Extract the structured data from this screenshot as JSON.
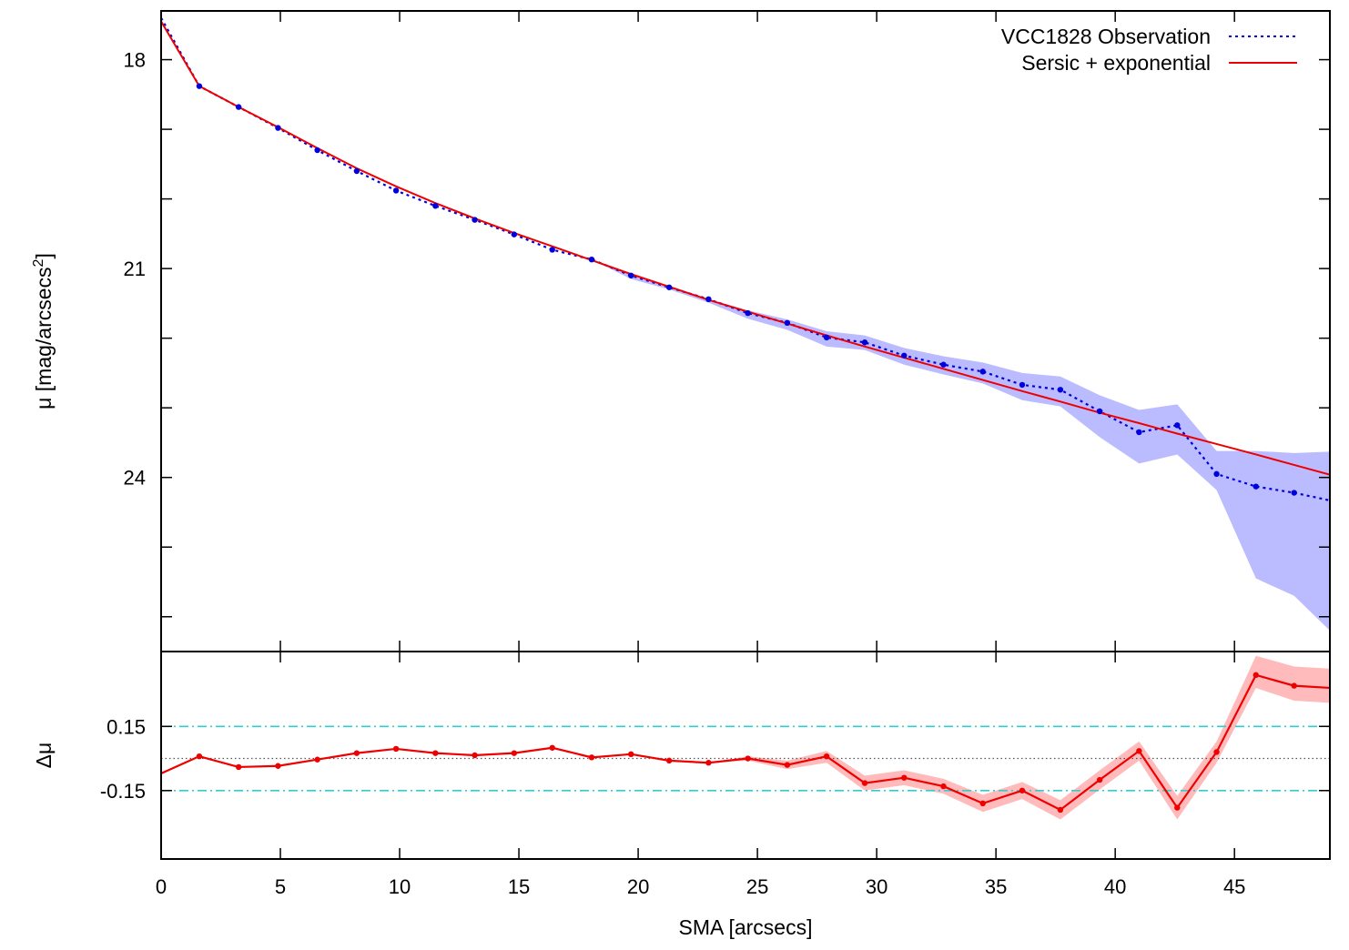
{
  "chart_data": [
    {
      "type": "line",
      "panel": "profile",
      "ylabel": "μ [mag/arcsecs²]",
      "ylabel_main": "μ [mag/arcsecs",
      "ylabel_sup": "2",
      "ylabel_close": "]",
      "xlim": [
        0,
        49
      ],
      "ylim": [
        17.3,
        26.5
      ],
      "y_inverted": true,
      "y_ticks_labeled": [
        "18",
        "21",
        "24"
      ],
      "y_tick_values_labeled": [
        18,
        21,
        24
      ],
      "y_minor_ticks": [
        19,
        20,
        22,
        23,
        25,
        26
      ],
      "legend_position": "top-right",
      "series": [
        {
          "name": "VCC1828 Observation",
          "style": "dotted-with-points",
          "color": "#0000dd",
          "band_color": "#bbbbff",
          "x": [
            0,
            1.6,
            3.25,
            4.9,
            6.55,
            8.2,
            9.85,
            11.5,
            13.15,
            14.8,
            16.4,
            18.05,
            19.7,
            21.3,
            22.95,
            24.6,
            26.25,
            27.9,
            29.5,
            31.15,
            32.8,
            34.45,
            36.1,
            37.7,
            39.35,
            41.0,
            42.6,
            44.25,
            45.9,
            47.5,
            49
          ],
          "y": [
            17.4,
            18.38,
            18.68,
            18.98,
            19.3,
            19.6,
            19.88,
            20.1,
            20.3,
            20.51,
            20.73,
            20.87,
            21.1,
            21.27,
            21.44,
            21.64,
            21.78,
            21.99,
            22.06,
            22.25,
            22.38,
            22.48,
            22.67,
            22.74,
            23.05,
            23.35,
            23.25,
            23.95,
            24.13,
            24.22,
            24.33
          ],
          "y_lower": [
            17.4,
            18.38,
            18.68,
            18.98,
            19.3,
            19.6,
            19.88,
            20.1,
            20.3,
            20.51,
            20.73,
            20.87,
            21.1,
            21.27,
            21.44,
            21.6,
            21.73,
            21.9,
            21.96,
            22.14,
            22.26,
            22.35,
            22.5,
            22.55,
            22.82,
            23.03,
            22.95,
            23.62,
            23.62,
            23.65,
            23.63
          ],
          "y_upper": [
            17.4,
            18.38,
            18.68,
            18.98,
            19.3,
            19.6,
            19.88,
            20.1,
            20.3,
            20.51,
            20.73,
            20.87,
            21.15,
            21.3,
            21.49,
            21.72,
            21.88,
            22.12,
            22.17,
            22.38,
            22.52,
            22.65,
            22.89,
            22.98,
            23.42,
            23.8,
            23.67,
            24.18,
            25.45,
            25.7,
            26.2
          ]
        },
        {
          "name": "Sersic + exponential",
          "style": "solid",
          "color": "#ee0000",
          "x": [
            0,
            1.6,
            3.25,
            4.9,
            6.55,
            8.2,
            9.85,
            11.5,
            13.15,
            14.8,
            16.4,
            18.05,
            19.7,
            21.3,
            22.95,
            24.6,
            26.25,
            27.9,
            29.5,
            31.15,
            32.8,
            34.45,
            36.1,
            37.7,
            39.35,
            41.0,
            42.6,
            44.25,
            45.9,
            47.5,
            49
          ],
          "y": [
            17.45,
            18.38,
            18.68,
            18.97,
            19.27,
            19.56,
            19.82,
            20.06,
            20.28,
            20.49,
            20.68,
            20.88,
            21.08,
            21.26,
            21.45,
            21.62,
            21.79,
            21.96,
            22.12,
            22.28,
            22.44,
            22.6,
            22.76,
            22.91,
            23.07,
            23.22,
            23.37,
            23.52,
            23.67,
            23.82,
            23.96
          ]
        }
      ]
    },
    {
      "type": "line",
      "panel": "residuals",
      "xlabel": "SMA [arcsecs]",
      "ylabel": "Δμ",
      "xlim": [
        0,
        49
      ],
      "x_ticks": [
        "0",
        "5",
        "10",
        "15",
        "20",
        "25",
        "30",
        "35",
        "40",
        "45"
      ],
      "x_tick_values": [
        0,
        5,
        10,
        15,
        20,
        25,
        30,
        35,
        40,
        45
      ],
      "ylim": [
        -0.47,
        0.5
      ],
      "y_ticks": [
        "0.15",
        "-0.15"
      ],
      "y_tick_values": [
        0.15,
        -0.15
      ],
      "reference_lines": [
        {
          "y": 0.15,
          "style": "dash-dot",
          "color": "#33cccc"
        },
        {
          "y": 0.0,
          "style": "dotted",
          "color": "#555555"
        },
        {
          "y": -0.15,
          "style": "dash-dot",
          "color": "#33cccc"
        }
      ],
      "series": [
        {
          "name": "",
          "style": "solid-with-points",
          "color": "#ee0000",
          "band_color": "#ffbbbb",
          "x": [
            0,
            1.6,
            3.25,
            4.9,
            6.55,
            8.2,
            9.85,
            11.5,
            13.15,
            14.8,
            16.4,
            18.05,
            19.7,
            21.3,
            22.95,
            24.6,
            26.25,
            27.9,
            29.5,
            31.15,
            32.8,
            34.45,
            36.1,
            37.7,
            39.35,
            41.0,
            42.6,
            44.25,
            45.9,
            47.5,
            49
          ],
          "y": [
            -0.07,
            0.01,
            -0.04,
            -0.035,
            -0.005,
            0.025,
            0.045,
            0.025,
            0.015,
            0.025,
            0.05,
            0.005,
            0.02,
            -0.01,
            -0.02,
            0.0,
            -0.03,
            0.01,
            -0.115,
            -0.09,
            -0.13,
            -0.21,
            -0.15,
            -0.24,
            -0.1,
            0.035,
            -0.23,
            0.03,
            0.39,
            0.34,
            0.33
          ],
          "y_lower": [
            -0.07,
            0.01,
            -0.04,
            -0.035,
            -0.005,
            0.025,
            0.045,
            0.025,
            0.015,
            0.025,
            0.05,
            0.005,
            0.02,
            -0.01,
            -0.02,
            -0.01,
            -0.05,
            -0.02,
            -0.15,
            -0.125,
            -0.165,
            -0.25,
            -0.19,
            -0.285,
            -0.145,
            -0.01,
            -0.285,
            -0.02,
            0.33,
            0.27,
            0.26
          ],
          "y_upper": [
            -0.07,
            0.01,
            -0.04,
            -0.035,
            -0.005,
            0.025,
            0.045,
            0.025,
            0.015,
            0.025,
            0.05,
            0.005,
            0.02,
            -0.01,
            -0.02,
            0.01,
            -0.01,
            0.035,
            -0.08,
            -0.055,
            -0.095,
            -0.17,
            -0.11,
            -0.195,
            -0.055,
            0.08,
            -0.175,
            0.08,
            0.48,
            0.43,
            0.42
          ]
        }
      ]
    }
  ]
}
